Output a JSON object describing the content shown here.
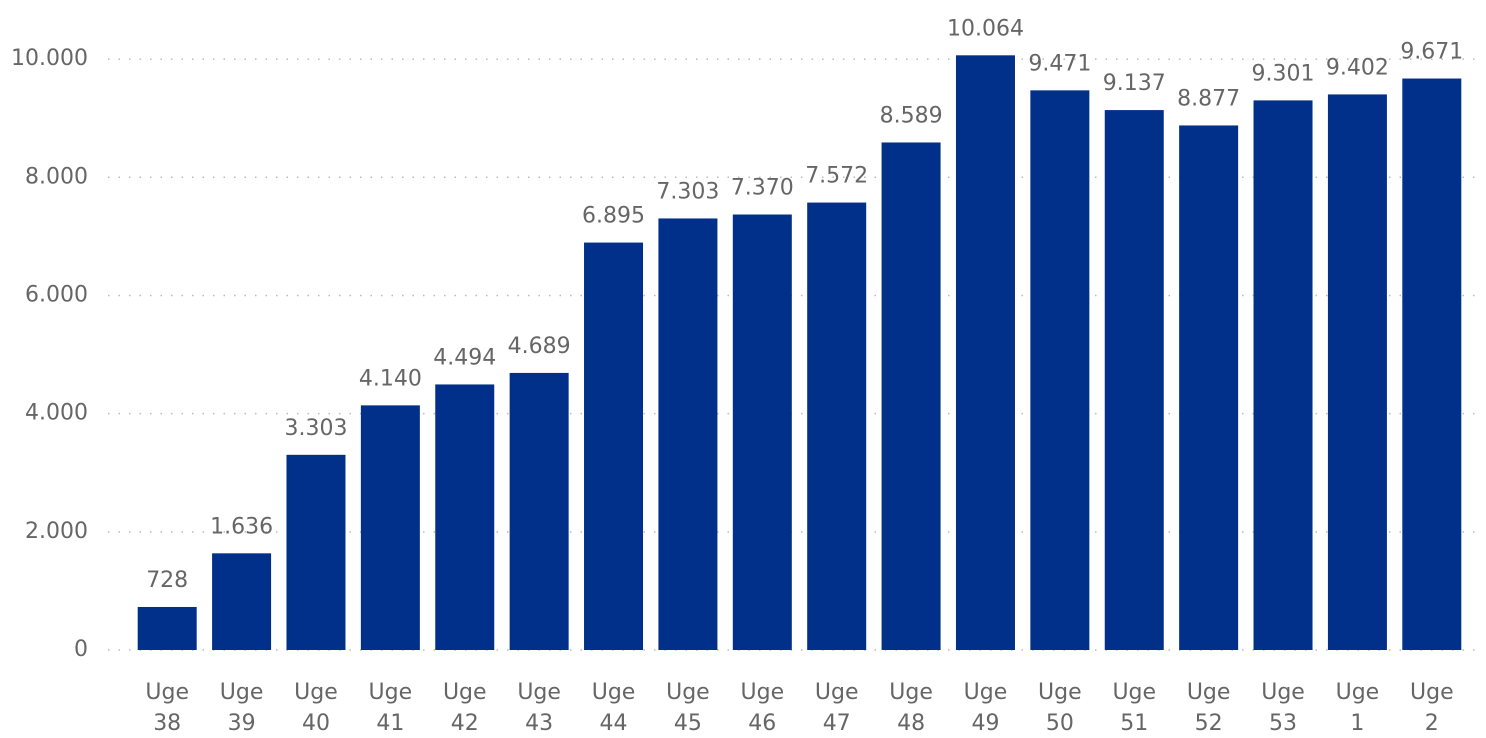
{
  "chart_data": {
    "type": "bar",
    "categories": [
      "Uge 38",
      "Uge 39",
      "Uge 40",
      "Uge 41",
      "Uge 42",
      "Uge 43",
      "Uge 44",
      "Uge 45",
      "Uge 46",
      "Uge 47",
      "Uge 48",
      "Uge 49",
      "Uge 50",
      "Uge 51",
      "Uge 52",
      "Uge 53",
      "Uge 1",
      "Uge 2"
    ],
    "values": [
      728,
      1636,
      3303,
      4140,
      4494,
      4689,
      6895,
      7303,
      7370,
      7572,
      8589,
      10064,
      9471,
      9137,
      8877,
      9301,
      9402,
      9671
    ],
    "value_labels": [
      "728",
      "1.636",
      "3.303",
      "4.140",
      "4.494",
      "4.689",
      "6.895",
      "7.303",
      "7.370",
      "7.572",
      "8.589",
      "10.064",
      "9.471",
      "9.137",
      "8.877",
      "9.301",
      "9.402",
      "9.671"
    ],
    "color": "#00308a",
    "ylim": [
      0,
      11000
    ],
    "yticks": [
      0,
      {
        "value": 2000,
        "label": "2.000"
      },
      {
        "value": 4000,
        "label": "4.000"
      },
      {
        "value": 6000,
        "label": "6.000"
      },
      {
        "value": 8000,
        "label": "8.000"
      },
      {
        "value": 10000,
        "label": "10.000"
      }
    ],
    "grid": true
  }
}
